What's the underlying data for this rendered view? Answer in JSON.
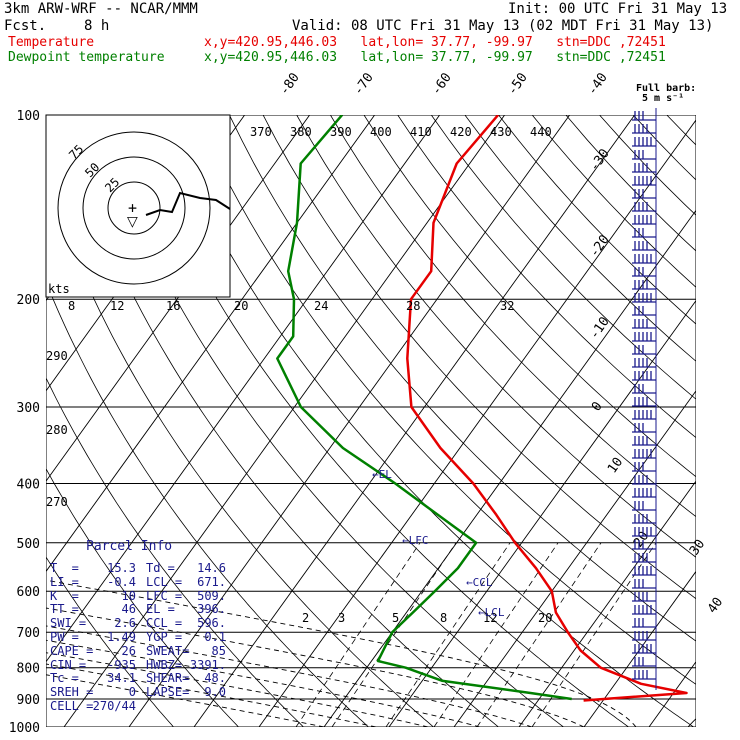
{
  "header": {
    "model": "3km ARW-WRF -- NCAR/MMM",
    "init": "Init: 00 UTC Fri 31 May 13",
    "fcst_label": "Fcst.",
    "fcst_value": "8 h",
    "valid": "Valid: 08 UTC Fri 31 May 13 (02 MDT Fri 31 May 13)",
    "temp_label": "Temperature",
    "dew_label": "Dewpoint temperature",
    "point_info": "x,y=420.95,446.03   lat,lon= 37.77, -99.97   stn=DDC ,72451"
  },
  "colors": {
    "temperature": "#e60000",
    "dewpoint": "#008000",
    "barbs": "#1a1a8c",
    "info_text": "#1a1a8c",
    "grid": "#000000"
  },
  "legend": {
    "full_barb_line1": "Full barb:",
    "full_barb_line2": "5 m s⁻¹"
  },
  "hodograph": {
    "unit_label": "kts",
    "ring_labels": [
      "75",
      "50",
      "25"
    ],
    "center_marker": "+",
    "storm_marker": "▽"
  },
  "chart_data": {
    "type": "skew-T log-p sounding",
    "pressure_levels_hPa": [
      100,
      200,
      300,
      400,
      500,
      600,
      700,
      800,
      900,
      1000
    ],
    "isotherm_labels_C": [
      "-80",
      "-70",
      "-60",
      "-50",
      "-40",
      "-30",
      "-20",
      "-10",
      "0",
      "10",
      "20",
      "30",
      "40"
    ],
    "theta_labels_K": [
      "370",
      "380",
      "390",
      "400",
      "410",
      "420",
      "430",
      "440"
    ],
    "theta_left_labels_K": [
      "290",
      "280",
      "270"
    ],
    "mixing_ratio_labels": [
      "2",
      "3",
      "5",
      "8",
      "12",
      "20"
    ],
    "hodo_axis_labels": [
      "8",
      "12",
      "16",
      "20",
      "24",
      "28",
      "32"
    ],
    "annotations": [
      "EL",
      "LFC",
      "CCL",
      "LCL"
    ],
    "temperature_profile": [
      {
        "p": 100,
        "T": -61
      },
      {
        "p": 120,
        "T": -62
      },
      {
        "p": 150,
        "T": -59
      },
      {
        "p": 180,
        "T": -54
      },
      {
        "p": 200,
        "T": -54
      },
      {
        "p": 250,
        "T": -48
      },
      {
        "p": 300,
        "T": -42
      },
      {
        "p": 350,
        "T": -33
      },
      {
        "p": 400,
        "T": -24
      },
      {
        "p": 450,
        "T": -17
      },
      {
        "p": 500,
        "T": -11
      },
      {
        "p": 550,
        "T": -5
      },
      {
        "p": 600,
        "T": 0
      },
      {
        "p": 650,
        "T": 3
      },
      {
        "p": 700,
        "T": 7
      },
      {
        "p": 750,
        "T": 11
      },
      {
        "p": 800,
        "T": 16
      },
      {
        "p": 850,
        "T": 24
      },
      {
        "p": 880,
        "T": 32
      },
      {
        "p": 905,
        "T": 17
      }
    ],
    "dewpoint_profile": [
      {
        "p": 100,
        "Td": -85
      },
      {
        "p": 120,
        "Td": -86
      },
      {
        "p": 150,
        "Td": -80
      },
      {
        "p": 180,
        "Td": -76
      },
      {
        "p": 200,
        "Td": -72
      },
      {
        "p": 230,
        "Td": -68
      },
      {
        "p": 250,
        "Td": -68
      },
      {
        "p": 300,
        "Td": -59
      },
      {
        "p": 350,
        "Td": -48
      },
      {
        "p": 400,
        "Td": -36
      },
      {
        "p": 450,
        "Td": -26
      },
      {
        "p": 500,
        "Td": -17
      },
      {
        "p": 550,
        "Td": -17
      },
      {
        "p": 600,
        "Td": -18
      },
      {
        "p": 650,
        "Td": -19
      },
      {
        "p": 700,
        "Td": -20
      },
      {
        "p": 780,
        "Td": -19
      },
      {
        "p": 800,
        "Td": -14
      },
      {
        "p": 840,
        "Td": -7
      },
      {
        "p": 880,
        "Td": 8
      },
      {
        "p": 900,
        "Td": 15
      }
    ],
    "wind_barb_levels": 44
  },
  "parcel_info": {
    "title": "Parcel Info",
    "rows": [
      {
        "l1": "T  =",
        "v1": "15.3",
        "l2": "Td =",
        "v2": "14.6"
      },
      {
        "l1": "LI =",
        "v1": "-0.4",
        "l2": "LCL =",
        "v2": "671."
      },
      {
        "l1": "K  =",
        "v1": "10",
        "l2": "LFC =",
        "v2": "509."
      },
      {
        "l1": "TT =",
        "v1": "46",
        "l2": "EL =",
        "v2": "396."
      },
      {
        "l1": "SWI =",
        "v1": "2.6",
        "l2": "CCL =",
        "v2": "596."
      },
      {
        "l1": "PW =",
        "v1": "1.49",
        "l2": "YGP =",
        "v2": "0.1"
      },
      {
        "l1": "CAPE =",
        "v1": "26",
        "l2": "SWEAT=",
        "v2": "85"
      },
      {
        "l1": "CIN =",
        "v1": "-935",
        "l2": "HWBZ=",
        "v2": "3391."
      },
      {
        "l1": "Tc =",
        "v1": "34.1",
        "l2": "SHEAR=",
        "v2": "48."
      },
      {
        "l1": "SREH =",
        "v1": "0",
        "l2": "LAPSE=",
        "v2": "9.0"
      },
      {
        "l1": "CELL =",
        "v1": "270/44",
        "l2": "",
        "v2": ""
      }
    ]
  }
}
